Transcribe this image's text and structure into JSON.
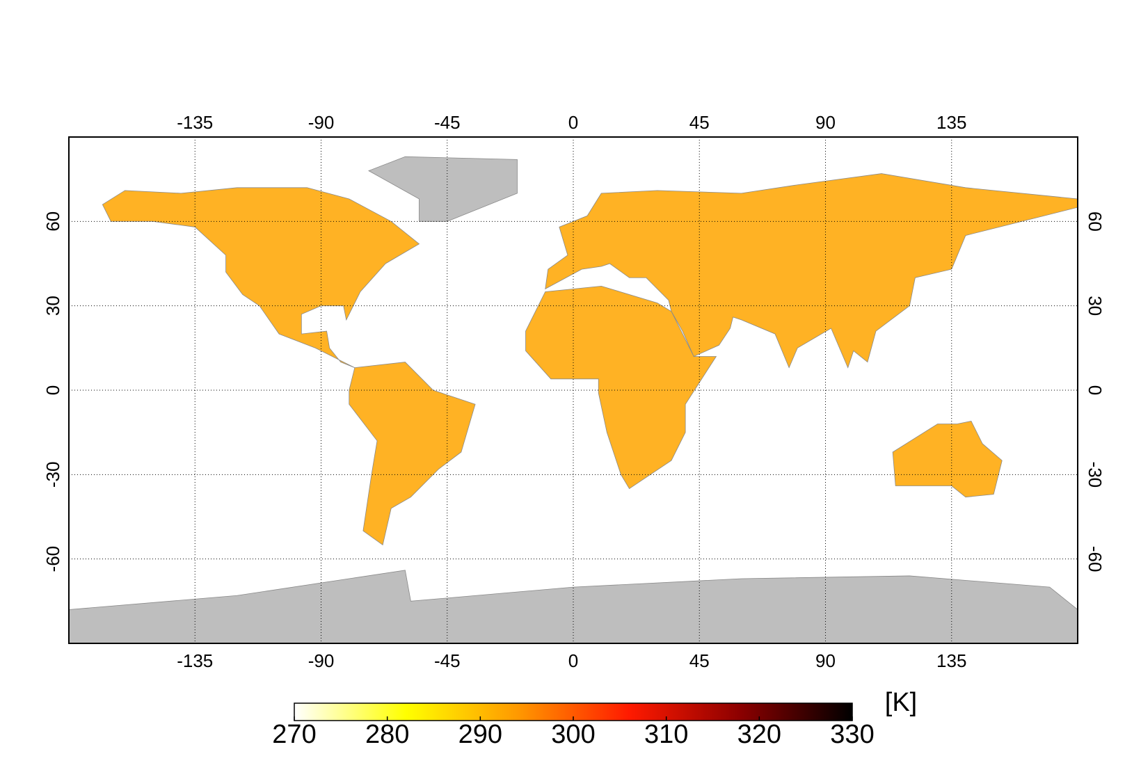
{
  "chart_data": {
    "type": "map",
    "xlim": [
      -180,
      180
    ],
    "ylim": [
      -90,
      90
    ],
    "xticks": [
      -135,
      -90,
      -45,
      0,
      45,
      90,
      135
    ],
    "yticks": [
      -60,
      -30,
      0,
      30,
      60
    ],
    "grid": true,
    "land_color": "#ffb224",
    "no_data_color": "#bebebe",
    "colorbar": {
      "lim": [
        270,
        330
      ],
      "ticks": [
        270,
        280,
        290,
        300,
        310,
        320,
        330
      ],
      "unit": "[K]",
      "colors": [
        "#ffffff",
        "#ffff00",
        "#ff9900",
        "#ff1a00",
        "#8b0000",
        "#000000"
      ]
    }
  }
}
